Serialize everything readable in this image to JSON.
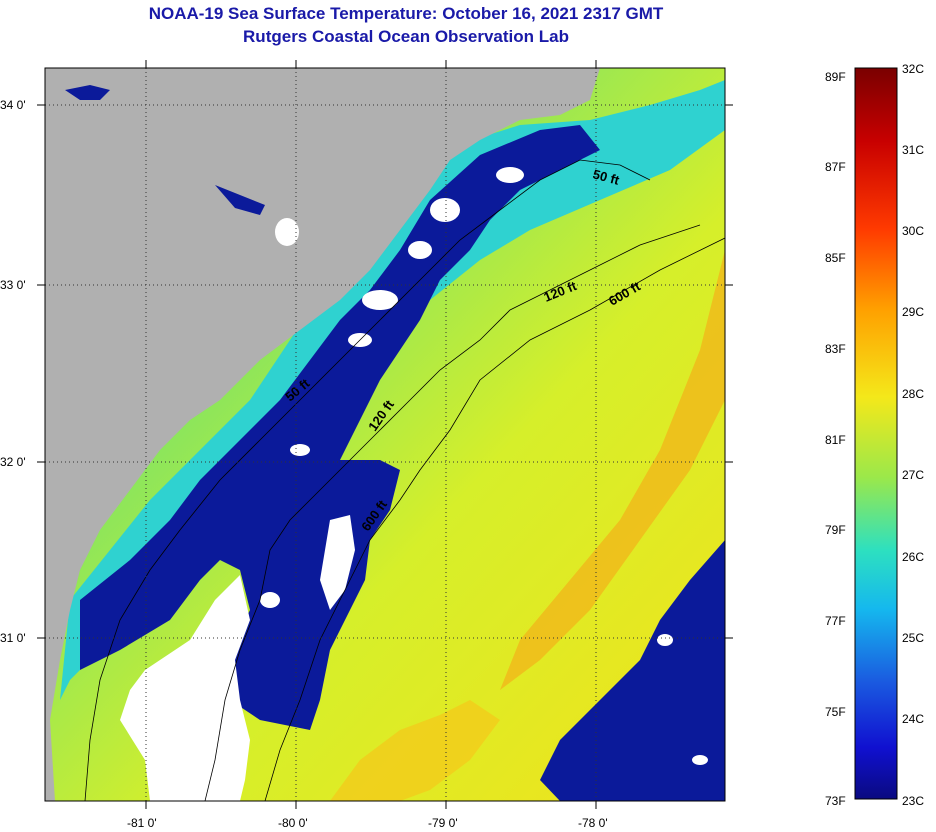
{
  "header": {
    "title": "NOAA-19 Sea Surface Temperature:  October 16, 2021 2317 GMT",
    "subtitle": "Rutgers Coastal Ocean Observation Lab"
  },
  "map": {
    "lat_labels": [
      "34 0'",
      "33 0'",
      "32 0'",
      "31 0'"
    ],
    "lon_labels": [
      "-81 0'",
      "-80 0'",
      "-79 0'",
      "-78 0'"
    ],
    "isobaths": [
      {
        "label": "50 ft",
        "depth_ft": 50
      },
      {
        "label": "120 ft",
        "depth_ft": 120
      },
      {
        "label": "600 ft",
        "depth_ft": 600
      }
    ],
    "isobath_labels_drawn": [
      "50 ft",
      "120 ft",
      "600 ft",
      "50 ft",
      "120 ft",
      "600 ft"
    ],
    "colors": {
      "land": "#b0b0b0",
      "cloud": "#ffffff",
      "cold_water": "#0b1a9a"
    }
  },
  "colorbar": {
    "fahrenheit_labels": [
      "89F",
      "87F",
      "85F",
      "83F",
      "81F",
      "79F",
      "77F",
      "75F",
      "73F"
    ],
    "celsius_labels": [
      "32C",
      "31C",
      "30C",
      "29C",
      "28C",
      "27C",
      "26C",
      "25C",
      "24C",
      "23C"
    ],
    "range_c": [
      23,
      32
    ],
    "range_f": [
      73,
      89
    ]
  }
}
